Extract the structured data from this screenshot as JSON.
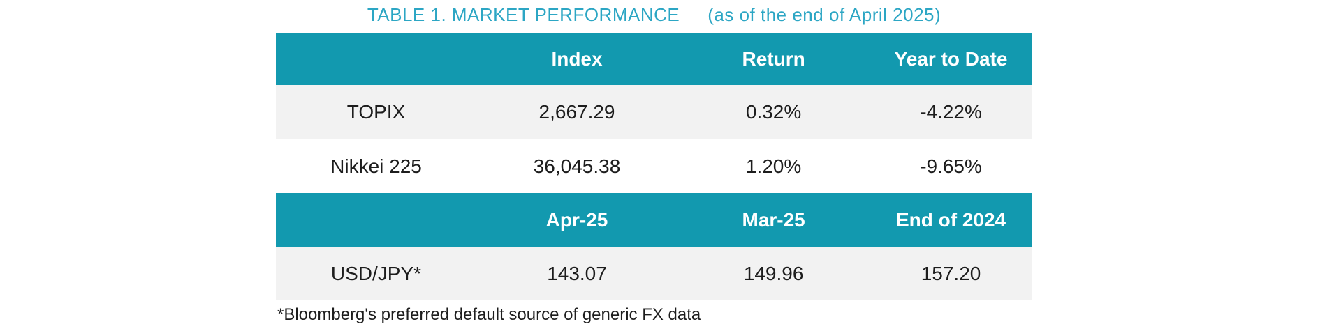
{
  "colors": {
    "teal": "#1299af",
    "title_text": "#2ca6c4",
    "row_alt": "#f2f2f2",
    "body_text": "#1d1d1d"
  },
  "title": {
    "main": "TABLE 1. MARKET PERFORMANCE",
    "suffix": "(as of the end of April 2025)"
  },
  "table": {
    "section1": {
      "headers": [
        "",
        "Index",
        "Return",
        "Year to Date"
      ],
      "rows": [
        [
          "TOPIX",
          "2,667.29",
          "0.32%",
          "-4.22%"
        ],
        [
          "Nikkei 225",
          "36,045.38",
          "1.20%",
          "-9.65%"
        ]
      ]
    },
    "section2": {
      "headers": [
        "",
        "Apr-25",
        "Mar-25",
        "End of 2024"
      ],
      "rows": [
        [
          "USD/JPY*",
          "143.07",
          "149.96",
          "157.20"
        ]
      ]
    }
  },
  "footnote": "*Bloomberg's preferred default source of generic FX data"
}
